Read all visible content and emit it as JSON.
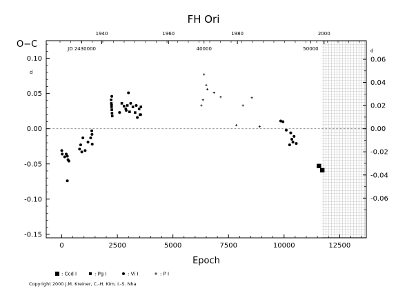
{
  "chart_data": {
    "type": "scatter",
    "title": "FH Ori",
    "xlabel": "Epoch",
    "ylabel": "O−C",
    "ylabel_unit": "d",
    "xlim": [
      -700,
      13700
    ],
    "ylim": [
      -0.155,
      0.125
    ],
    "x_ticks": [
      0,
      2500,
      5000,
      7500,
      10000,
      12500
    ],
    "y_ticks": [
      -0.15,
      -0.1,
      -0.05,
      0.0,
      0.05,
      0.1
    ],
    "y_tick_labels": [
      "-0.15",
      "-0.10",
      "-0.05",
      "0.00",
      "0.05",
      "0.10"
    ],
    "right_ticks": [
      -0.06,
      -0.04,
      -0.02,
      0.0,
      0.02,
      0.04,
      0.06
    ],
    "right_tick_labels": [
      "-0.06",
      "-0.04",
      "-0.02",
      "0.00",
      "0.02",
      "0.04",
      "0.06"
    ],
    "top_year_ticks": [
      {
        "label": "1940",
        "epoch": 1800
      },
      {
        "label": "1960",
        "epoch": 4800
      },
      {
        "label": "1980",
        "epoch": 7900
      },
      {
        "label": "2000",
        "epoch": 11800
      }
    ],
    "jd_labels": [
      {
        "label": "JD 2430000",
        "epoch": 900
      },
      {
        "label": "40000",
        "epoch": 6400
      },
      {
        "label": "50000",
        "epoch": 11200
      }
    ],
    "grid": false,
    "zero_line": true,
    "shaded_region_epoch": [
      11700,
      13700
    ],
    "legend_placement": "bottom-left",
    "series": [
      {
        "name": ": Ccd I",
        "marker": "square",
        "points": [
          [
            11570,
            -0.053
          ],
          [
            11720,
            -0.059
          ]
        ]
      },
      {
        "name": ": Pg I",
        "marker": "small-square",
        "points": [
          [
            2220,
            0.041
          ],
          [
            2230,
            0.036
          ],
          [
            2240,
            0.031
          ],
          [
            2250,
            0.027
          ],
          [
            2260,
            0.022
          ],
          [
            2270,
            0.018
          ],
          [
            2700,
            0.036
          ],
          [
            2800,
            0.032
          ],
          [
            2880,
            0.028
          ],
          [
            2950,
            0.033
          ],
          [
            3050,
            0.024
          ],
          [
            3200,
            0.031
          ],
          [
            3300,
            0.023
          ],
          [
            3480,
            0.028
          ],
          [
            3520,
            0.02
          ],
          [
            3560,
            0.031
          ]
        ]
      },
      {
        "name": ": Vi I",
        "marker": "dot",
        "points": [
          [
            0,
            -0.031
          ],
          [
            20,
            -0.036
          ],
          [
            130,
            -0.04
          ],
          [
            200,
            -0.036
          ],
          [
            250,
            -0.039
          ],
          [
            280,
            -0.044
          ],
          [
            320,
            -0.046
          ],
          [
            250,
            -0.074
          ],
          [
            800,
            -0.029
          ],
          [
            850,
            -0.023
          ],
          [
            900,
            -0.033
          ],
          [
            950,
            -0.013
          ],
          [
            1050,
            -0.031
          ],
          [
            1180,
            -0.019
          ],
          [
            1300,
            -0.013
          ],
          [
            1350,
            -0.003
          ],
          [
            1360,
            -0.008
          ],
          [
            1370,
            -0.022
          ],
          [
            2250,
            0.046
          ],
          [
            2240,
            0.034
          ],
          [
            2600,
            0.023
          ],
          [
            2900,
            0.026
          ],
          [
            3000,
            0.051
          ],
          [
            3100,
            0.036
          ],
          [
            3350,
            0.033
          ],
          [
            3400,
            0.016
          ],
          [
            3550,
            0.02
          ],
          [
            9850,
            0.011
          ],
          [
            9950,
            0.01
          ],
          [
            10100,
            -0.002
          ],
          [
            10250,
            -0.023
          ],
          [
            10300,
            -0.006
          ],
          [
            10350,
            -0.015
          ],
          [
            10400,
            -0.019
          ],
          [
            10450,
            -0.011
          ],
          [
            10550,
            -0.021
          ]
        ]
      },
      {
        "name": ": P I",
        "marker": "plus",
        "points": [
          [
            6280,
            0.033
          ],
          [
            6350,
            0.041
          ],
          [
            6400,
            0.077
          ],
          [
            6500,
            0.062
          ],
          [
            6550,
            0.056
          ],
          [
            6850,
            0.051
          ],
          [
            7150,
            0.045
          ],
          [
            7850,
            0.005
          ],
          [
            8150,
            0.033
          ],
          [
            8550,
            0.044
          ],
          [
            8900,
            0.003
          ]
        ]
      }
    ],
    "copyright": "Copyright 2000 J.M. Kreiner, C.-H. Kim, I.-S. Nha"
  }
}
